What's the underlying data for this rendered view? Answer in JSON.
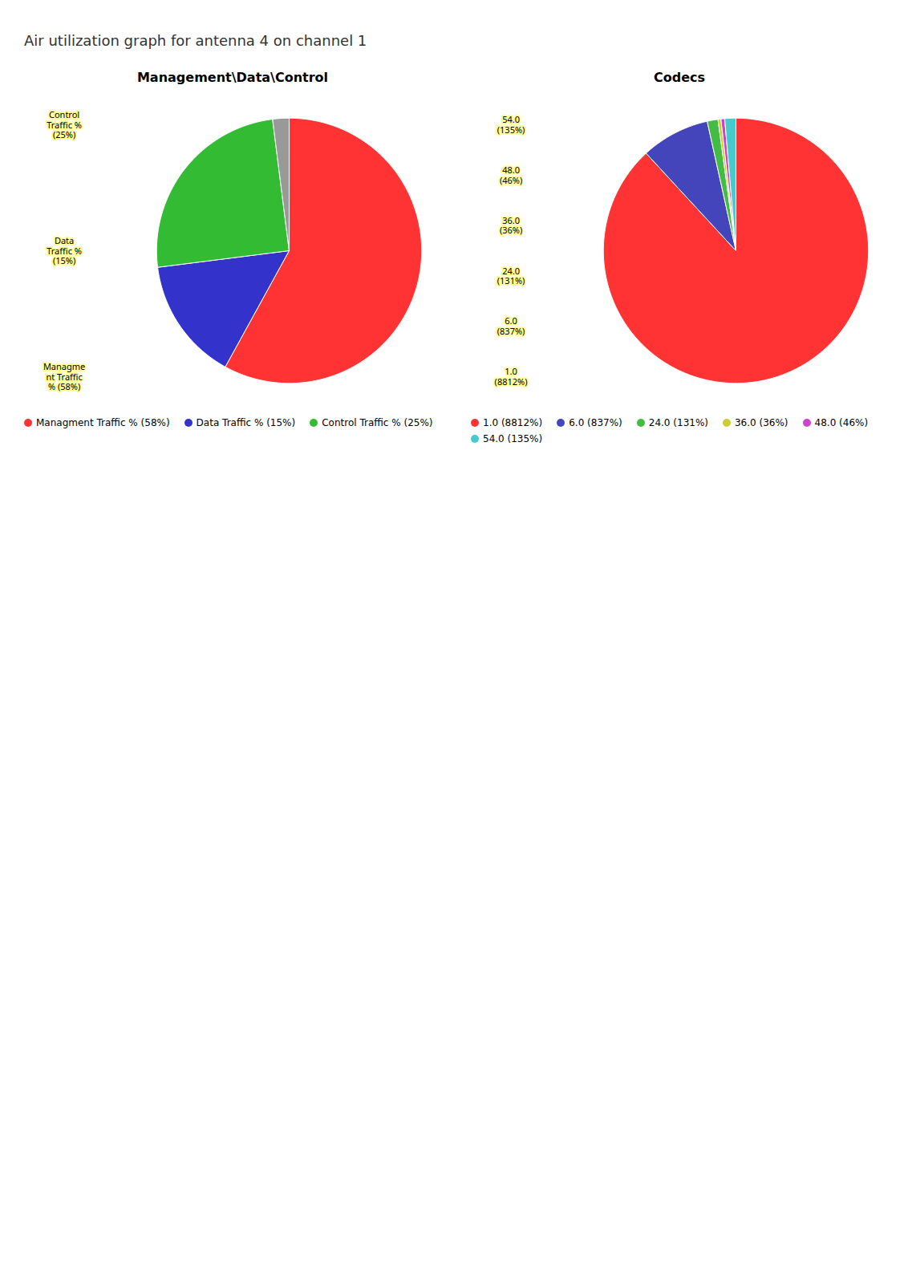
{
  "title": "Air utilization graph for antenna 4 on channel 1",
  "chart_data": [
    {
      "type": "pie",
      "title": "Management\\Data\\Control",
      "categories": [
        "Managment Traffic % (58%)",
        "Data Traffic % (15%)",
        "Control Traffic % (25%)",
        null
      ],
      "values": [
        58,
        15,
        25,
        2
      ],
      "colors": [
        "#FF3333",
        "#3333CC",
        "#33BB33",
        "#999999"
      ],
      "legend": "bottom",
      "annotations": [
        "Control\nTraffic %\n(25%)",
        "Data\nTraffic %\n(15%)",
        "Managme\nnt Traffic\n% (58%)"
      ]
    },
    {
      "type": "pie",
      "title": "Codecs",
      "categories": [
        "1.0 (8812%)",
        "6.0 (837%)",
        "24.0 (131%)",
        "36.0 (36%)",
        "48.0 (46%)",
        "54.0 (135%)"
      ],
      "values": [
        8812,
        837,
        131,
        36,
        46,
        135
      ],
      "colors": [
        "#FF3333",
        "#4444BB",
        "#44BB44",
        "#CCCC33",
        "#CC44CC",
        "#44CCCC"
      ],
      "legend": "bottom",
      "annotations": [
        "54.0\n(135%)",
        "48.0\n(46%)",
        "36.0\n(36%)",
        "24.0\n(131%)",
        "6.0\n(837%)",
        "1.0\n(8812%)"
      ]
    }
  ]
}
